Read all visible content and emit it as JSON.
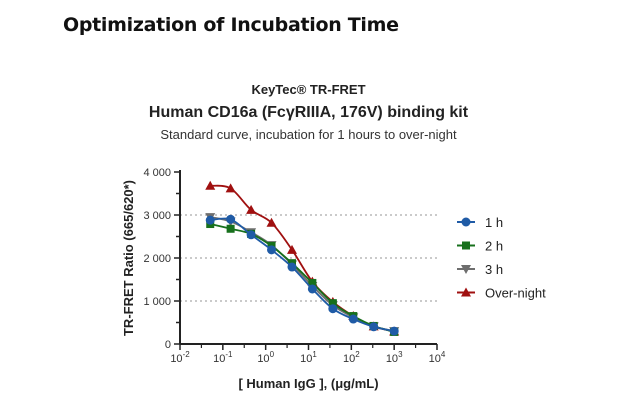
{
  "page": {
    "heading": "Optimization of Incubation Time"
  },
  "chart_data": {
    "type": "scatter",
    "title_line1": "KeyTec® TR-FRET",
    "title_line2": "Human CD16a (FcγRIIIA, 176V) binding kit",
    "subtitle": "Standard curve,  incubation for 1 hours to over-night",
    "xlabel": "[ Human IgG ],  (μg/mL)",
    "ylabel": "TR-FRET Ratio (665/620*)",
    "xscale": "log",
    "xlim": [
      0.01,
      10000
    ],
    "ylim": [
      0,
      4000
    ],
    "xticks": [
      "10-2",
      "10-1",
      "100",
      "101",
      "102",
      "103",
      "104"
    ],
    "yticks": [
      "0",
      "1 000",
      "2 000",
      "3 000",
      "4 000"
    ],
    "grid": "horizontal dotted",
    "legend": "right",
    "x": [
      0.0508,
      0.152,
      0.457,
      1.37,
      4.12,
      12.3,
      37,
      111,
      333,
      1000
    ],
    "series": [
      {
        "name": "1 h",
        "color": "#1f5ba6",
        "marker": "circle",
        "values": [
          2880,
          2900,
          2540,
          2190,
          1790,
          1280,
          820,
          580,
          400,
          300
        ]
      },
      {
        "name": "2 h",
        "color": "#17701c",
        "marker": "square",
        "values": [
          2790,
          2680,
          2560,
          2280,
          1880,
          1420,
          950,
          650,
          420,
          280
        ]
      },
      {
        "name": "3 h",
        "color": "#6e6e6e",
        "marker": "triangle-down",
        "values": [
          2950,
          2850,
          2600,
          2300,
          1850,
          1350,
          900,
          620,
          410,
          300
        ]
      },
      {
        "name": "Over-night",
        "color": "#a01010",
        "marker": "triangle-up",
        "values": [
          3680,
          3620,
          3120,
          2820,
          2190,
          1450,
          980,
          650,
          410,
          290
        ]
      }
    ]
  }
}
